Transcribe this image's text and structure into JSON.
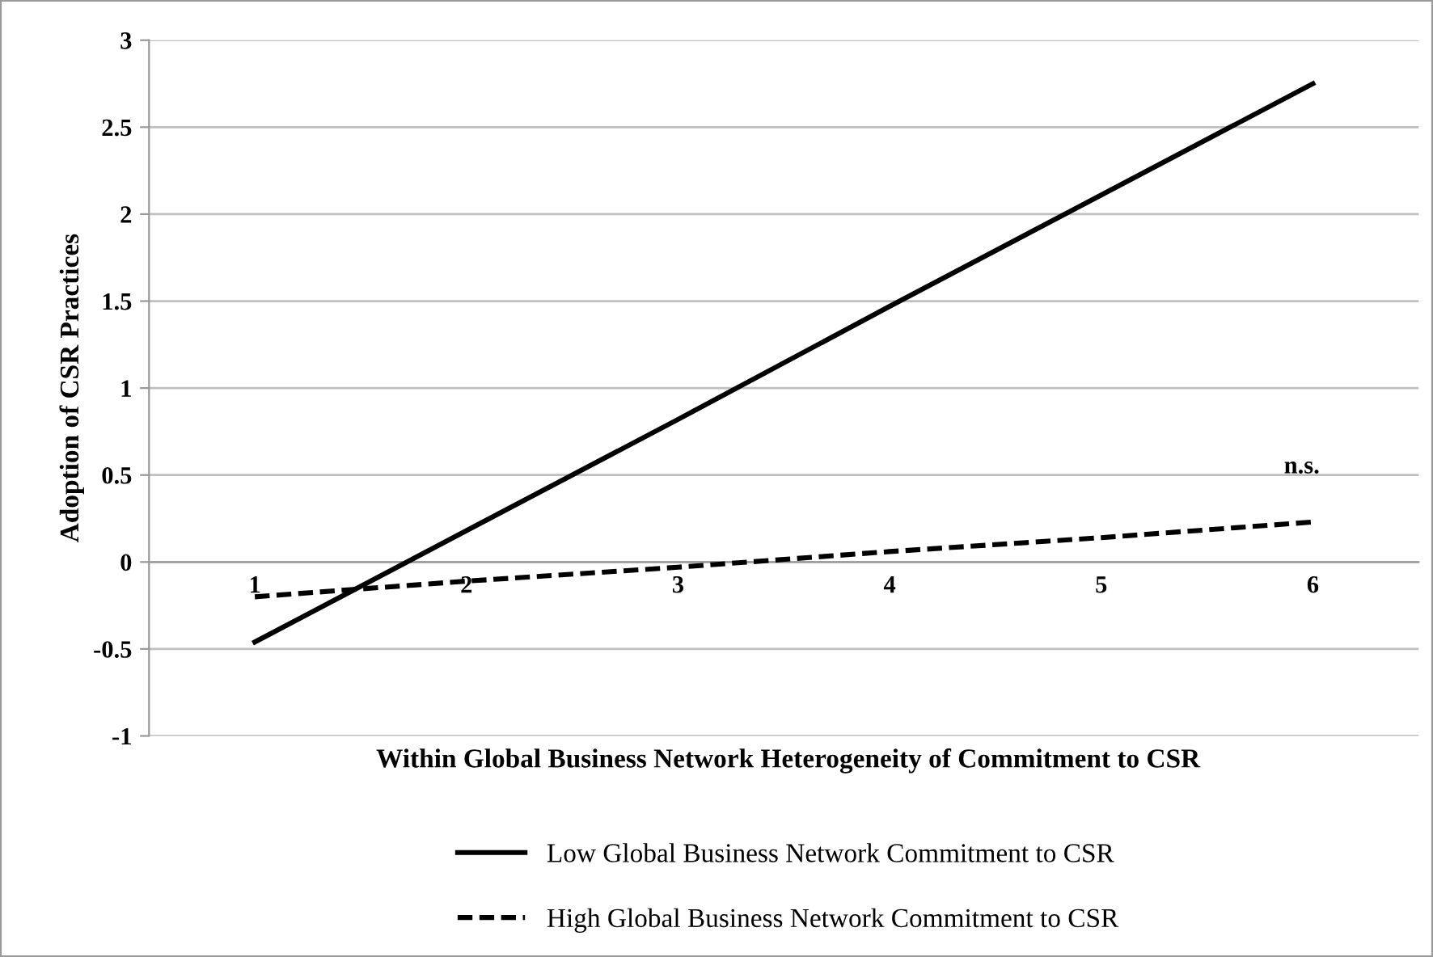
{
  "chart_data": {
    "type": "line",
    "xlabel": "Within Global Business Network Heterogeneity of Commitment to CSR",
    "ylabel": "Adoption of CSR Practices",
    "categories": [
      "1",
      "2",
      "3",
      "4",
      "5",
      "6"
    ],
    "series": [
      {
        "name": "Low Global Business Network Commitment to CSR",
        "color": "#000000",
        "line_style": "solid",
        "values": [
          -0.46,
          0.18,
          0.82,
          1.47,
          2.11,
          2.75
        ]
      },
      {
        "name": "High Global Business Network Commitment to CSR",
        "color": "#000000",
        "line_style": "dashed",
        "values": [
          -0.2,
          -0.11,
          -0.03,
          0.06,
          0.14,
          0.23
        ]
      }
    ],
    "ylim": [
      -1,
      3
    ],
    "yticks": [
      -1,
      -0.5,
      0,
      0.5,
      1,
      1.5,
      2,
      2.5,
      3
    ],
    "grid": "y",
    "legend": "bottom",
    "marker": "none",
    "annotations": [
      "n.s."
    ]
  }
}
